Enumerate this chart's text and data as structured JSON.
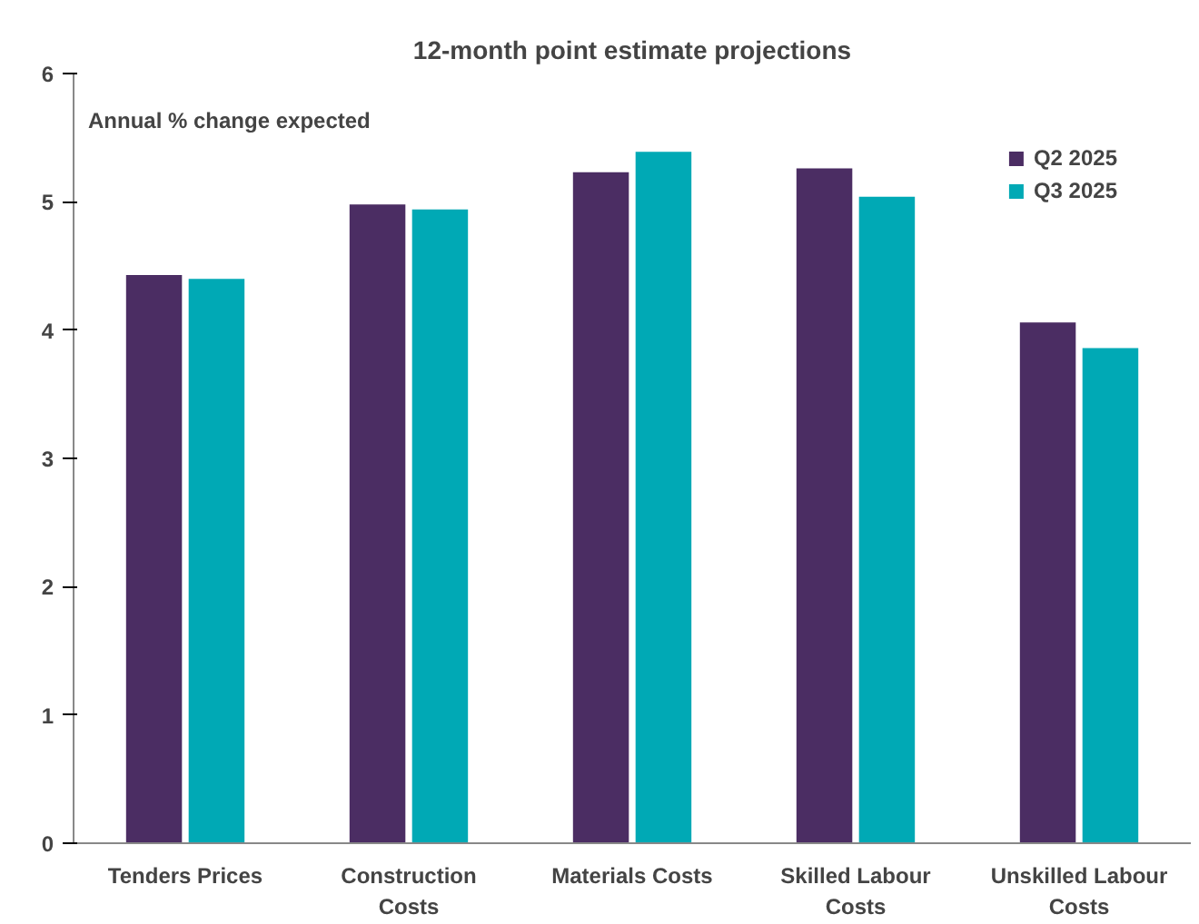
{
  "chart_data": {
    "type": "bar",
    "title": "12-month point estimate projections",
    "ylabel": "Annual % change expected",
    "categories": [
      "Tenders Prices",
      "Construction Costs",
      "Materials Costs",
      "Skilled Labour Costs",
      "Unskilled Labour Costs"
    ],
    "series": [
      {
        "name": "Q2 2025",
        "color": "#4b2d63",
        "values": [
          4.43,
          4.98,
          5.23,
          5.26,
          4.06
        ]
      },
      {
        "name": "Q3 2025",
        "color": "#00a9b5",
        "values": [
          4.4,
          4.94,
          5.39,
          5.04,
          3.86
        ]
      }
    ],
    "ylim": [
      0,
      6
    ],
    "yticks": [
      0,
      1,
      2,
      3,
      4,
      5,
      6
    ],
    "grid": false,
    "legend": "top right"
  }
}
